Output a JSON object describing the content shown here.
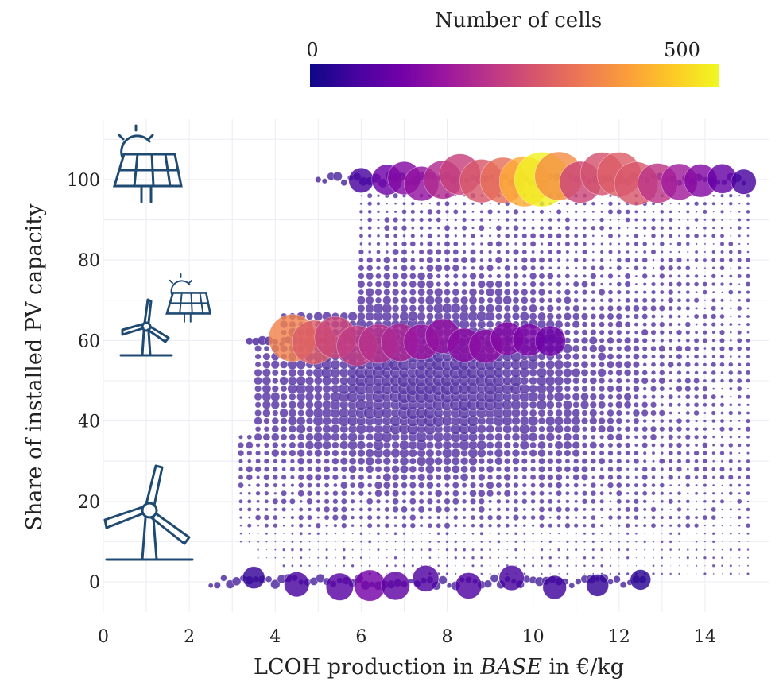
{
  "chart_data": {
    "type": "scatter",
    "xlabel": {
      "pre": "LCOH production in ",
      "italic": "BASE",
      "post": " in €/kg"
    },
    "ylabel": "Share of installed PV capacity",
    "xlim": [
      0,
      15.5
    ],
    "ylim": [
      -7.5,
      115
    ],
    "xticks": [
      "0",
      "2",
      "4",
      "6",
      "8",
      "10",
      "12",
      "14"
    ],
    "yticks": [
      "0",
      "20",
      "40",
      "60",
      "80",
      "100"
    ],
    "grid": true,
    "colorbar": {
      "title": "Number of cells",
      "min_label": "0",
      "max_label": "500",
      "colors": [
        "#0d0887",
        "#46039f",
        "#7201a8",
        "#9c179e",
        "#bd3786",
        "#d8576b",
        "#ed7953",
        "#fb9f3a",
        "#fdca26",
        "#f0f921"
      ]
    },
    "marker_color_low": "#5b3aa6",
    "bubble_groups": [
      {
        "y": 100,
        "x": [
          6.0,
          6.6,
          7.0,
          7.4,
          7.9,
          8.3,
          8.8,
          9.3,
          9.8,
          10.2,
          10.6,
          11.1,
          11.6,
          12.0,
          12.4,
          12.9,
          13.4,
          13.9,
          14.4,
          14.9
        ],
        "counts": [
          60,
          110,
          140,
          160,
          210,
          250,
          290,
          330,
          420,
          510,
          380,
          260,
          280,
          300,
          290,
          230,
          180,
          140,
          100,
          60
        ]
      },
      {
        "y": 60,
        "x": [
          4.4,
          4.9,
          5.4,
          5.9,
          6.4,
          6.9,
          7.4,
          7.9,
          8.4,
          8.9,
          9.4,
          9.9,
          10.4
        ],
        "counts": [
          360,
          300,
          260,
          240,
          220,
          200,
          170,
          160,
          150,
          150,
          140,
          130,
          110
        ]
      },
      {
        "y": 0,
        "x": [
          3.5,
          4.5,
          5.5,
          6.2,
          6.8,
          7.5,
          8.5,
          9.5,
          10.5,
          11.5,
          12.5
        ],
        "counts": [
          40,
          60,
          80,
          120,
          90,
          70,
          70,
          60,
          50,
          40,
          30
        ]
      }
    ]
  }
}
